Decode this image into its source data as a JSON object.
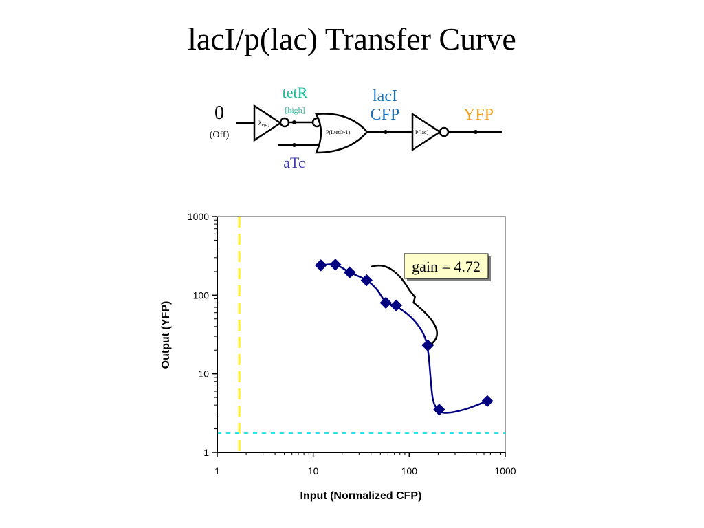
{
  "slide": {
    "title": "lacI/p(lac) Transfer Curve"
  },
  "circuit": {
    "input_value": "0",
    "input_state": "(Off)",
    "gate1_label": "λ",
    "gate1_sub": "P(R)",
    "tetR_label": "tetR",
    "tetR_level": "[high]",
    "nor_label": "P(LtetO-1)",
    "aTc_label": "aTc",
    "lacI_label": "lacI",
    "cfp_label": "CFP",
    "not_label": "P(lac)",
    "output_label": "YFP",
    "colors": {
      "tetR": "#1fb89a",
      "lacI": "#1a6fb5",
      "aTc": "#3a3aa8",
      "yfp": "#f0a020"
    }
  },
  "chart_data": {
    "type": "scatter",
    "xlabel": "Input (Normalized CFP)",
    "ylabel": "Output (YFP)",
    "xscale": "log",
    "yscale": "log",
    "xlim": [
      1,
      1000
    ],
    "ylim": [
      1,
      1000
    ],
    "xticks": [
      "1",
      "10",
      "100",
      "1000"
    ],
    "yticks": [
      "1",
      "10",
      "100",
      "1000"
    ],
    "grid": false,
    "series": [
      {
        "points": [
          [
            12,
            240
          ],
          [
            17,
            245
          ],
          [
            24,
            195
          ],
          [
            36,
            155
          ],
          [
            57,
            80
          ],
          [
            73,
            74
          ],
          [
            156,
            23
          ],
          [
            205,
            3.5
          ],
          [
            650,
            4.5
          ]
        ],
        "curve": [
          [
            12,
            240
          ],
          [
            17,
            245
          ],
          [
            24,
            195
          ],
          [
            36,
            155
          ],
          [
            46,
            118
          ],
          [
            57,
            82
          ],
          [
            73,
            72
          ],
          [
            100,
            55
          ],
          [
            130,
            38
          ],
          [
            150,
            26
          ],
          [
            160,
            16
          ],
          [
            168,
            8
          ],
          [
            178,
            4.5
          ],
          [
            205,
            3.35
          ],
          [
            260,
            3.2
          ],
          [
            400,
            3.6
          ],
          [
            650,
            4.5
          ]
        ],
        "color": "#000080"
      }
    ],
    "reference_lines": [
      {
        "orientation": "vertical",
        "x": 1.7,
        "color": "#ffee22",
        "style": "dashed"
      },
      {
        "orientation": "horizontal",
        "y": 1.75,
        "color": "#22e5ee",
        "style": "dotted"
      }
    ],
    "annotation": {
      "text": "gain = 4.72",
      "bracket_from": [
        40,
        230
      ],
      "bracket_to": [
        170,
        24
      ]
    }
  }
}
